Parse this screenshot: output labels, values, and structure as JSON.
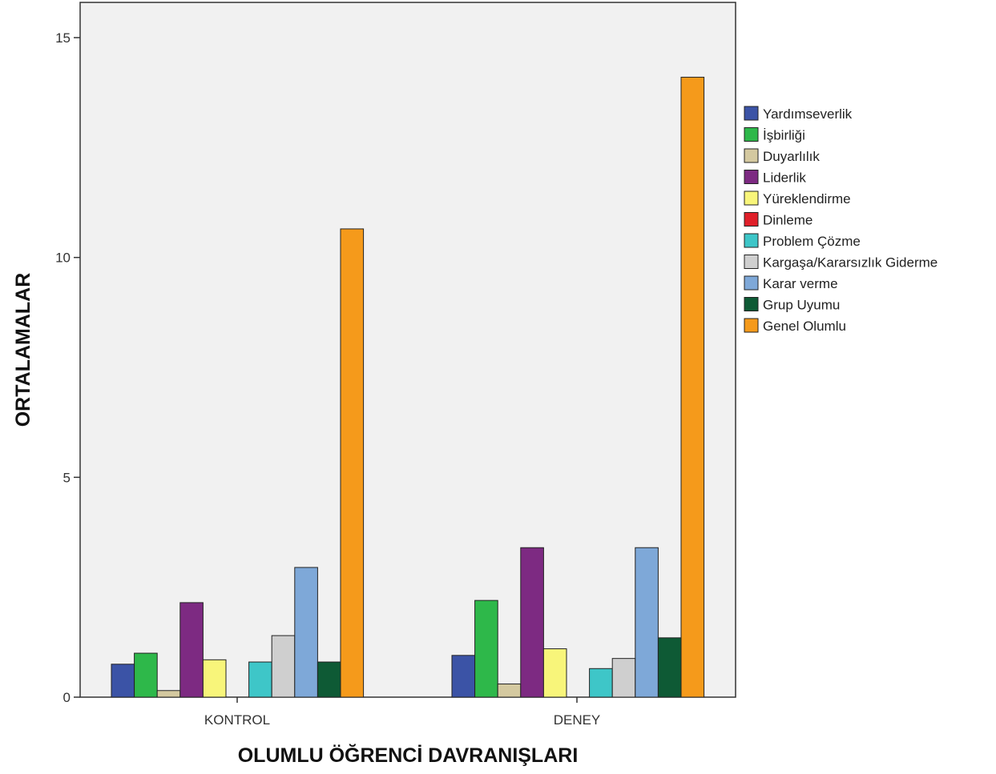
{
  "chart_data": {
    "type": "bar",
    "categories": [
      "KONTROL",
      "DENEY"
    ],
    "xlabel": "OLUMLU ÖĞRENCİ DAVRANIŞLARI",
    "ylabel": "ORTALAMALAR",
    "ylim": [
      0,
      15
    ],
    "yticks": [
      0,
      5,
      10,
      15
    ],
    "grid": false,
    "legend_position": "right",
    "series": [
      {
        "name": "Yardımseverlik",
        "color": "#3b53a6",
        "values": [
          0.75,
          0.95
        ]
      },
      {
        "name": "İşbirliği",
        "color": "#2eb84a",
        "values": [
          1.0,
          2.2
        ]
      },
      {
        "name": "Duyarlılık",
        "color": "#d4c9a0",
        "values": [
          0.15,
          0.3
        ]
      },
      {
        "name": "Liderlik",
        "color": "#7d2a82",
        "values": [
          2.15,
          3.4
        ]
      },
      {
        "name": "Yüreklendirme",
        "color": "#f8f57a",
        "values": [
          0.85,
          1.1
        ]
      },
      {
        "name": "Dinleme",
        "color": "#e0202a",
        "values": [
          0.0,
          0.0
        ]
      },
      {
        "name": "Problem Çözme",
        "color": "#3ec6c8",
        "values": [
          0.8,
          0.65
        ]
      },
      {
        "name": "Kargaşa/Kararsızlık Giderme",
        "color": "#cfcfcf",
        "values": [
          1.4,
          0.88
        ]
      },
      {
        "name": "Karar verme",
        "color": "#7ea8d8",
        "values": [
          2.95,
          3.4
        ]
      },
      {
        "name": "Grup Uyumu",
        "color": "#0e5a35",
        "values": [
          0.8,
          1.35
        ]
      },
      {
        "name": "Genel Olumlu",
        "color": "#f59a1b",
        "values": [
          10.65,
          14.1
        ]
      }
    ]
  }
}
